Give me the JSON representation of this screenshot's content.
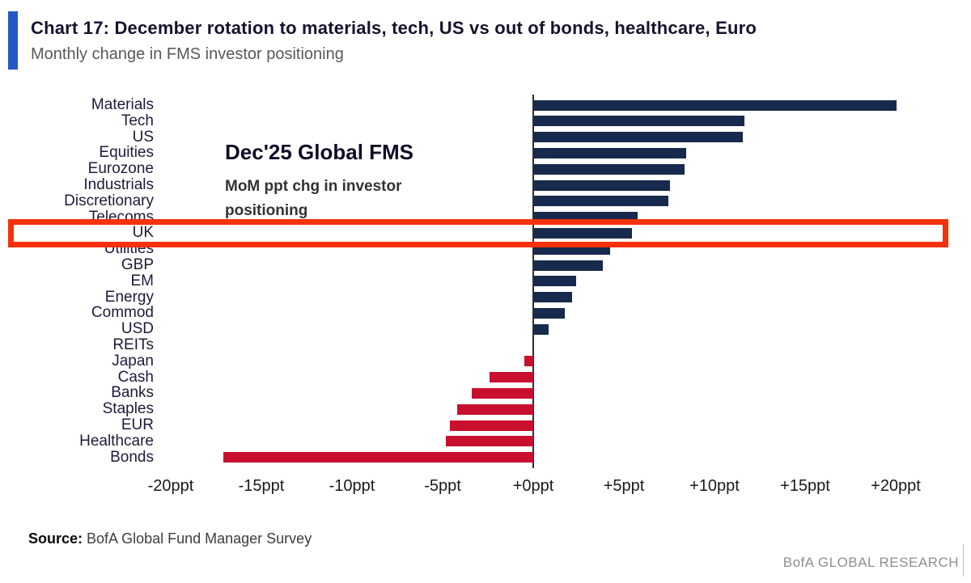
{
  "header": {
    "title": "Chart 17: December rotation to materials, tech, US vs out of bonds, healthcare, Euro",
    "subtitle": "Monthly change in FMS investor positioning"
  },
  "chart_data": {
    "type": "bar",
    "orientation": "horizontal",
    "title": "Chart 17: December rotation to materials, tech, US vs out of bonds, healthcare, Euro",
    "subtitle": "Monthly change in FMS investor positioning",
    "categories": [
      "Materials",
      "Tech",
      "US",
      "Equities",
      "Eurozone",
      "Industrials",
      "Discretionary",
      "Telecoms",
      "UK",
      "Utilities",
      "GBP",
      "EM",
      "Energy",
      "Commod",
      "USD",
      "REITs",
      "Japan",
      "Cash",
      "Banks",
      "Staples",
      "EUR",
      "Healthcare",
      "Bonds"
    ],
    "values": [
      20.0,
      11.6,
      11.5,
      8.4,
      8.3,
      7.5,
      7.4,
      5.7,
      5.4,
      4.2,
      3.8,
      2.3,
      2.1,
      1.7,
      0.8,
      0.0,
      -0.5,
      -2.4,
      -3.4,
      -4.2,
      -4.6,
      -4.8,
      -17.1
    ],
    "unit": "ppt",
    "x_tick_labels": [
      "-20ppt",
      "-15ppt",
      "-10ppt",
      "-5ppt",
      "+0ppt",
      "+5ppt",
      "+10ppt",
      "+15ppt",
      "+20ppt"
    ],
    "x_tick_values": [
      -20,
      -15,
      -10,
      -5,
      0,
      5,
      10,
      15,
      20
    ],
    "xlim": [
      -20,
      20
    ],
    "grid": "off",
    "legend": "none",
    "annotation": {
      "title": "Dec'25 Global FMS",
      "subtitle": "MoM ppt chg in investor positioning"
    },
    "colors": {
      "positive": "#17294d",
      "negative": "#c8102e"
    }
  },
  "highlight": {
    "target": "UK",
    "color": "#f5320b"
  },
  "footer": {
    "source_label": "Source:",
    "source_text": " BofA Global Fund Manager Survey",
    "brand": "BofA GLOBAL RESEARCH"
  }
}
